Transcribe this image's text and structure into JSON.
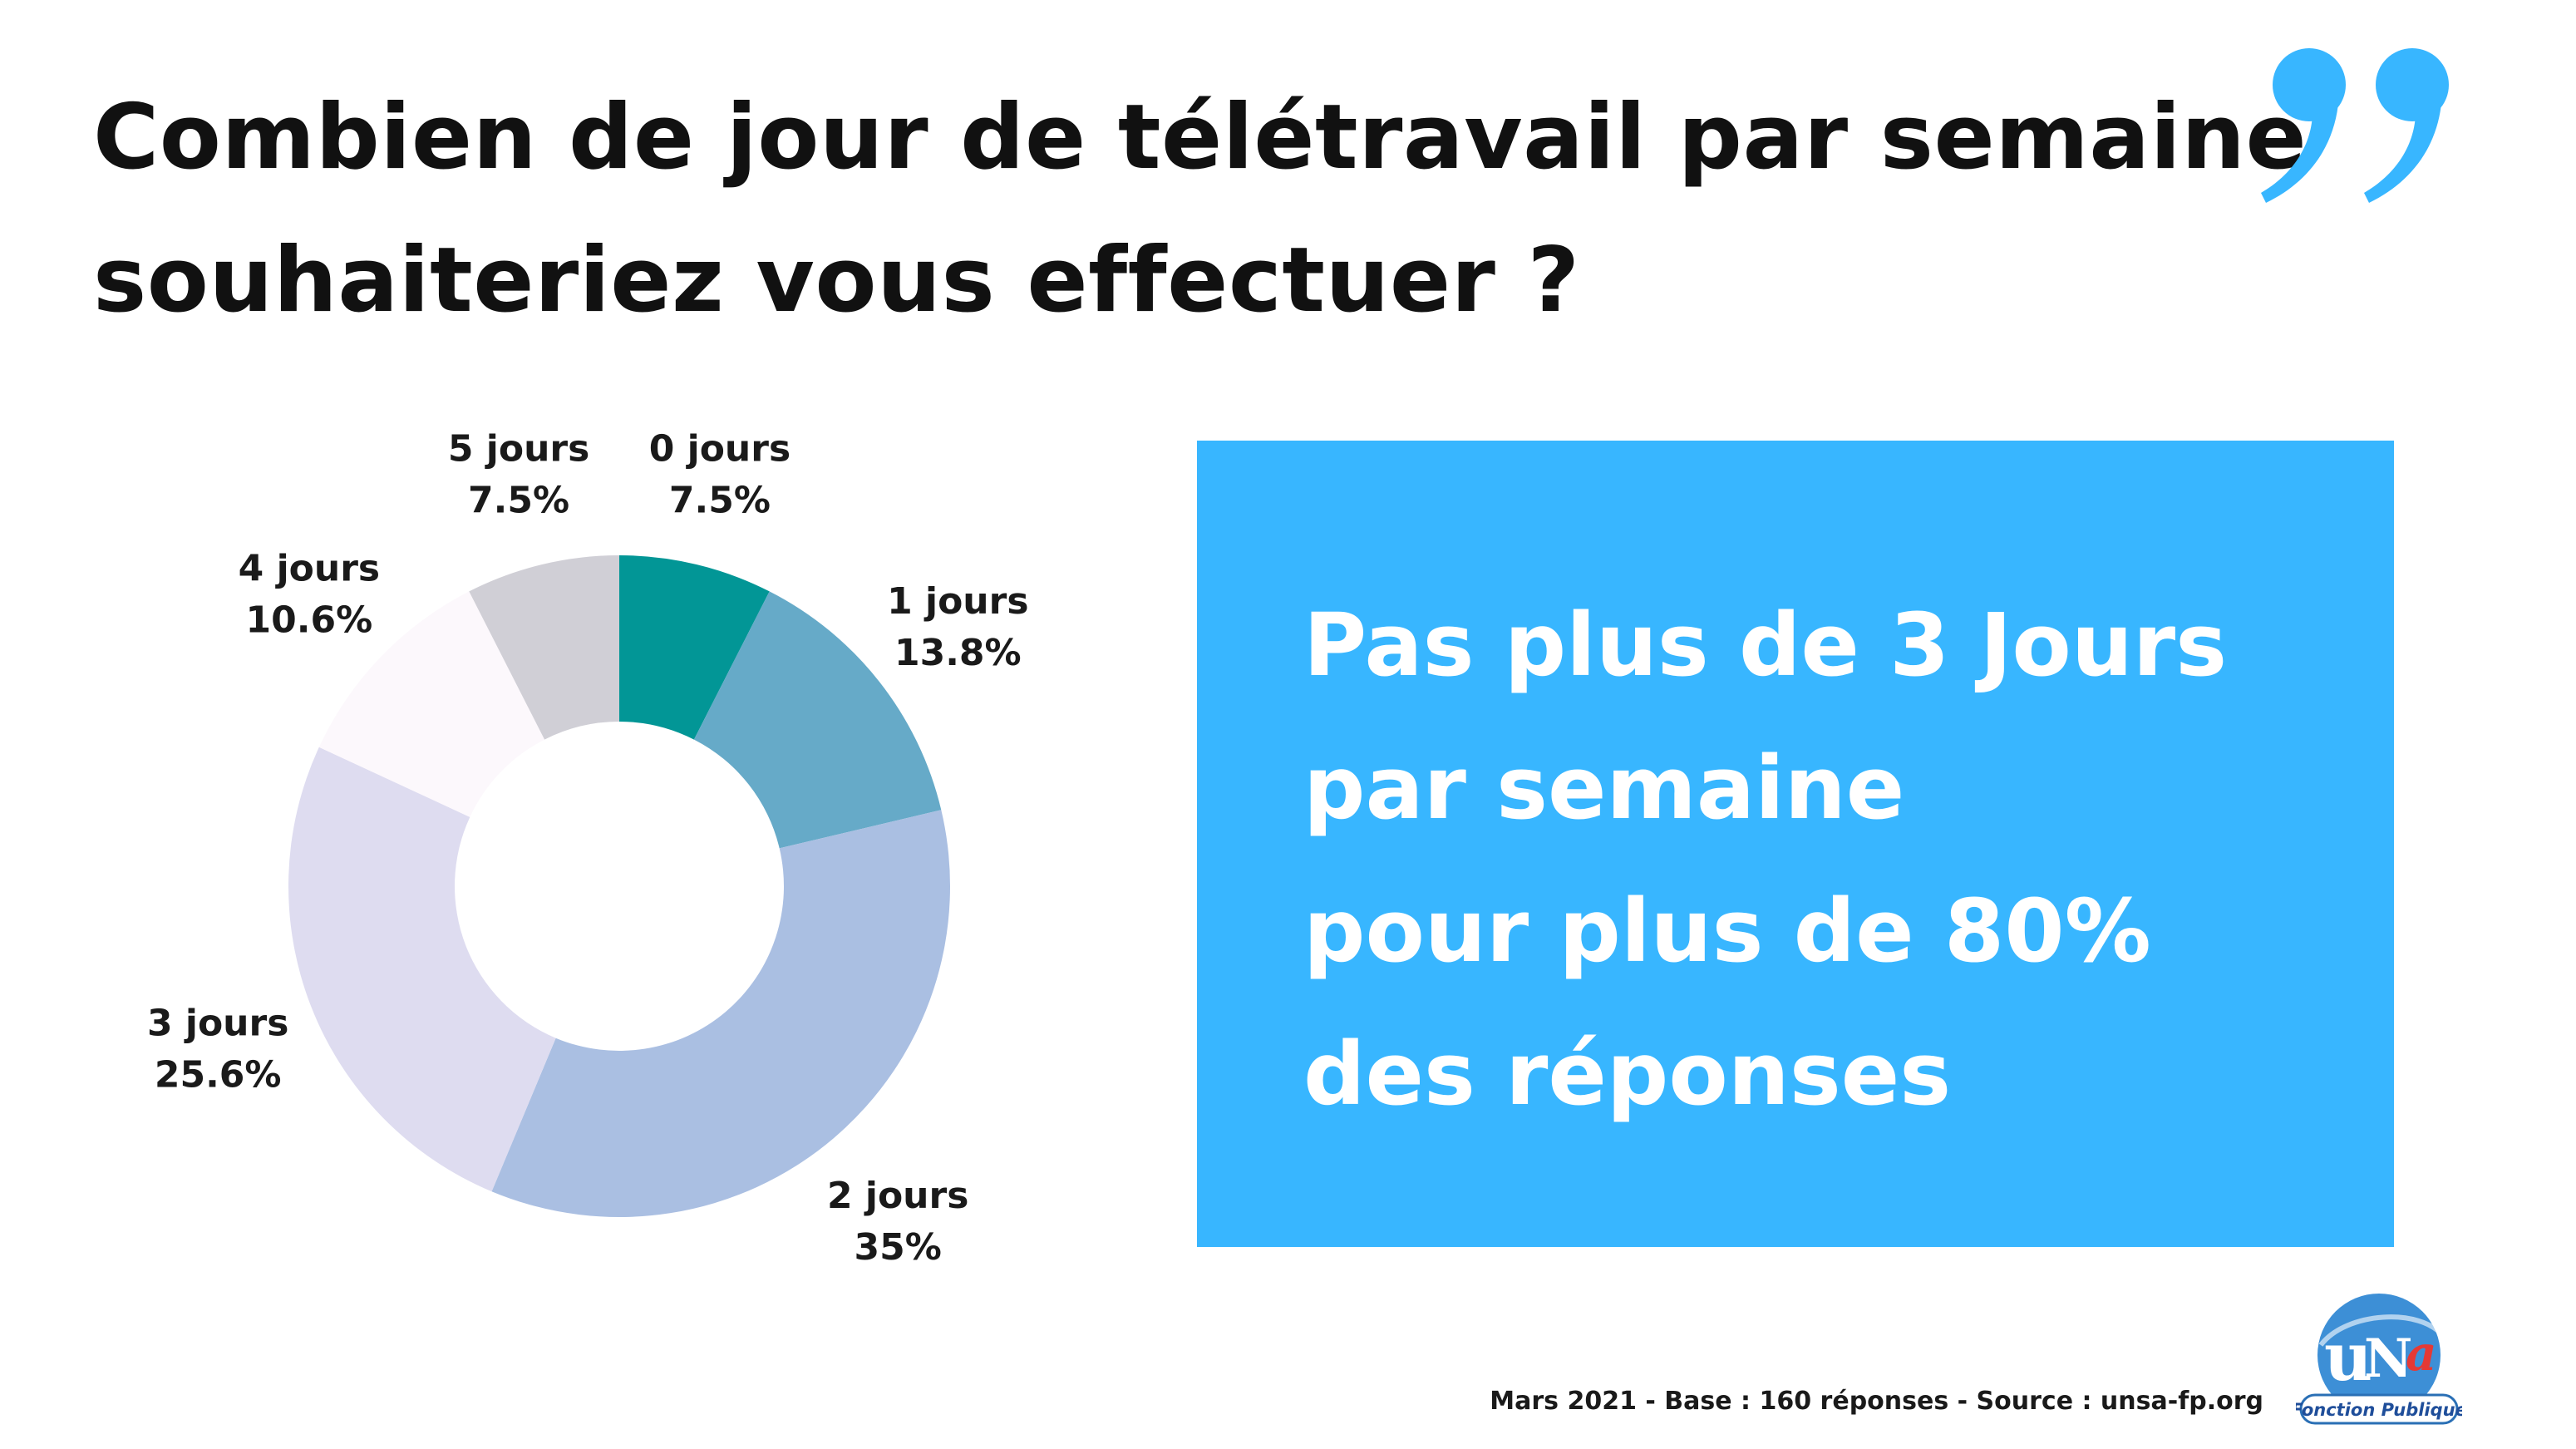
{
  "header": {
    "title_line1": "Combien de jour de télétravail par semaine",
    "title_line2": "souhaiteriez vous effectuer ?"
  },
  "decor": {
    "quote_icon": "closing-quote-icon",
    "quote_color": "#38b6ff"
  },
  "chart_data": {
    "type": "pie",
    "donut": true,
    "title": "Combien de jour de télétravail par semaine souhaiteriez vous effectuer ?",
    "categories": [
      "0 jours",
      "1 jours",
      "2 jours",
      "3 jours",
      "4 jours",
      "5 jours"
    ],
    "values": [
      7.5,
      13.8,
      35,
      25.6,
      10.6,
      7.5
    ],
    "value_labels": [
      "7.5%",
      "13.8%",
      "35%",
      "25.6%",
      "10.6%",
      "7.5%"
    ],
    "colors": [
      "#029696",
      "#66aac8",
      "#aabfe2",
      "#dedcf0",
      "#fcf8fc",
      "#d0cfd6"
    ],
    "legend": "none",
    "labels_outside": true
  },
  "callout": {
    "background": "#38b6ff",
    "lines": [
      "Pas plus de 3 Jours",
      "par semaine",
      "pour plus de 80%",
      "des réponses"
    ]
  },
  "footer": {
    "note": "Mars 2021 - Base : 160 réponses - Source : unsa-fp.org"
  },
  "logo": {
    "icon": "unsa-fonction-publique-logo",
    "mark_text": "uNSa",
    "sub_text": "Fonction Publique",
    "colors": [
      "#1e88e5",
      "#e53935"
    ]
  }
}
